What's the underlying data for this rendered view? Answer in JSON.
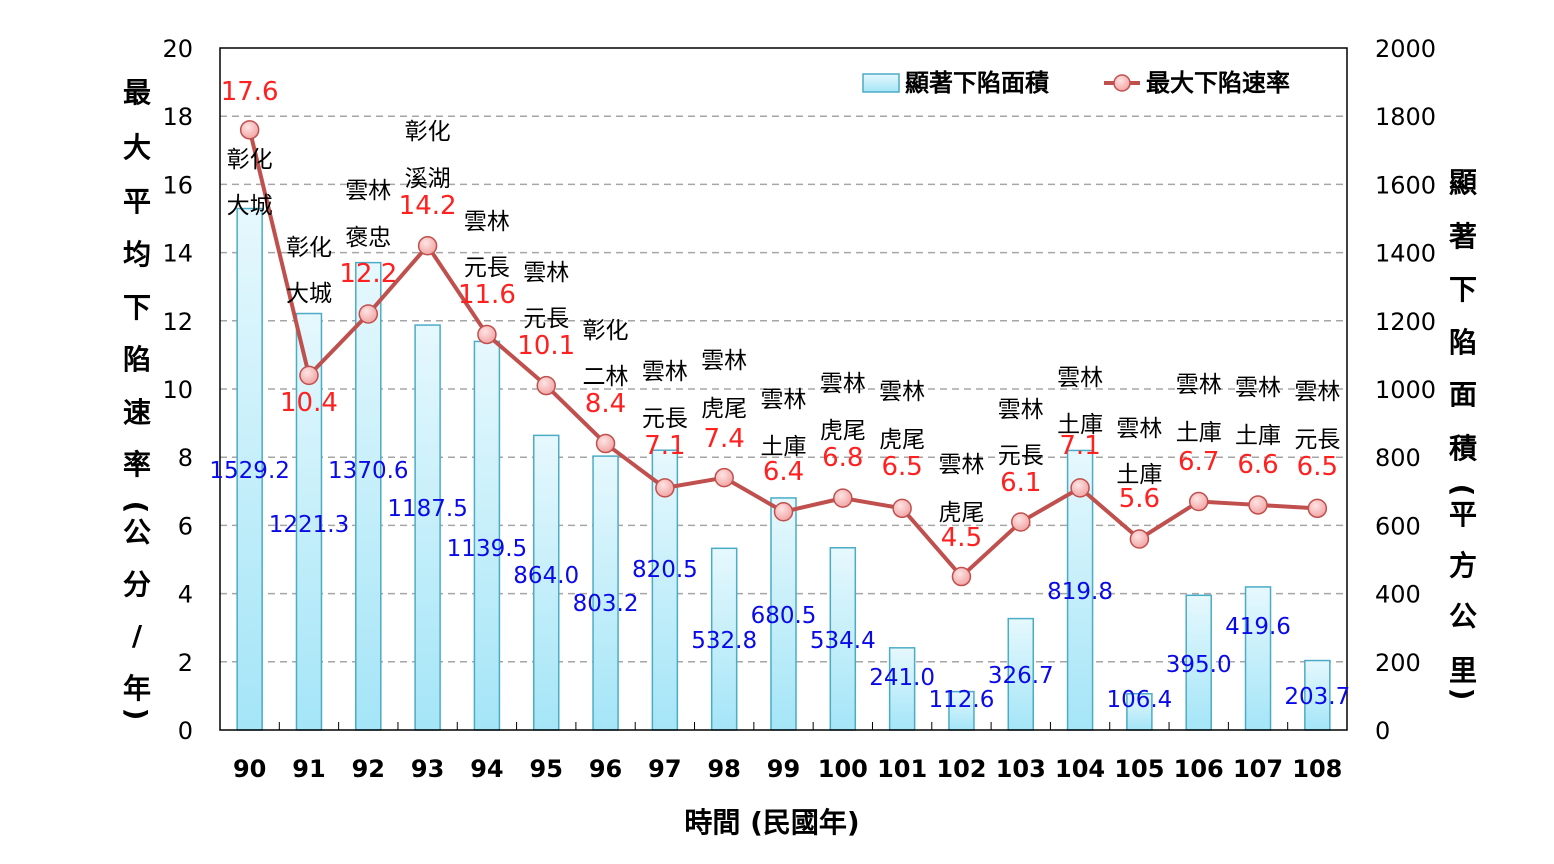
{
  "chart_data": {
    "type": "bar+line",
    "title": "",
    "xlabel": "時間 (民國年)",
    "ylabel_left": "最大平均下陷速率(公分/年)",
    "ylabel_right": "顯著下陷面積(平方公里)",
    "categories": [
      "90",
      "91",
      "92",
      "93",
      "94",
      "95",
      "96",
      "97",
      "98",
      "99",
      "100",
      "101",
      "102",
      "103",
      "104",
      "105",
      "106",
      "107",
      "108"
    ],
    "ylim_left": [
      0,
      20
    ],
    "yticks_left": [
      "0",
      "2",
      "4",
      "6",
      "8",
      "10",
      "12",
      "14",
      "16",
      "18",
      "20"
    ],
    "ylim_right": [
      0,
      2000
    ],
    "yticks_right": [
      "0",
      "200",
      "400",
      "600",
      "800",
      "1000",
      "1200",
      "1400",
      "1600",
      "1800",
      "2000"
    ],
    "grid": true,
    "legend_position": "top-right",
    "series": [
      {
        "name": "顯著下陷面積",
        "type": "bar",
        "axis": "right",
        "color": "#a9e6f7",
        "values": [
          1529.2,
          1221.3,
          1370.6,
          1187.5,
          1139.5,
          864.0,
          803.2,
          820.5,
          532.8,
          680.5,
          534.4,
          241.0,
          112.6,
          326.7,
          819.8,
          106.4,
          395.0,
          419.6,
          203.7
        ],
        "labels": [
          "1529.2",
          "1221.3",
          "1370.6",
          "1187.5",
          "1139.5",
          "864.0",
          "803.2",
          "820.5",
          "532.8",
          "680.5",
          "534.4",
          "241.0",
          "112.6",
          "326.7",
          "819.8",
          "106.4",
          "395.0",
          "419.6",
          "203.7"
        ]
      },
      {
        "name": "最大下陷速率",
        "type": "line",
        "axis": "left",
        "color": "#c0504d",
        "values": [
          17.6,
          10.4,
          12.2,
          14.2,
          11.6,
          10.1,
          8.4,
          7.1,
          7.4,
          6.4,
          6.8,
          6.5,
          4.5,
          6.1,
          7.1,
          5.6,
          6.7,
          6.6,
          6.5
        ],
        "labels": [
          "17.6",
          "10.4",
          "12.2",
          "14.2",
          "11.6",
          "10.1",
          "8.4",
          "7.1",
          "7.4",
          "6.4",
          "6.8",
          "6.5",
          "4.5",
          "6.1",
          "7.1",
          "5.6",
          "6.7",
          "6.6",
          "6.5"
        ]
      }
    ],
    "annotations": [
      {
        "category": "90",
        "county": "彰化",
        "town": "大城"
      },
      {
        "category": "91",
        "county": "彰化",
        "town": "大城"
      },
      {
        "category": "92",
        "county": "雲林",
        "town": "褒忠"
      },
      {
        "category": "93",
        "county": "彰化",
        "town": "溪湖"
      },
      {
        "category": "94",
        "county": "雲林",
        "town": "元長"
      },
      {
        "category": "95",
        "county": "雲林",
        "town": "元長"
      },
      {
        "category": "96",
        "county": "彰化",
        "town": "二林"
      },
      {
        "category": "97",
        "county": "雲林",
        "town": "元長"
      },
      {
        "category": "98",
        "county": "雲林",
        "town": "虎尾"
      },
      {
        "category": "99",
        "county": "雲林",
        "town": "土庫"
      },
      {
        "category": "100",
        "county": "雲林",
        "town": "虎尾"
      },
      {
        "category": "101",
        "county": "雲林",
        "town": "虎尾"
      },
      {
        "category": "102",
        "county": "雲林",
        "town": "虎尾"
      },
      {
        "category": "103",
        "county": "雲林",
        "town": "元長"
      },
      {
        "category": "104",
        "county": "雲林",
        "town": "土庫"
      },
      {
        "category": "105",
        "county": "雲林",
        "town": "土庫"
      },
      {
        "category": "106",
        "county": "雲林",
        "town": "土庫"
      },
      {
        "category": "107",
        "county": "雲林",
        "town": "土庫"
      },
      {
        "category": "108",
        "county": "雲林",
        "town": "元長"
      }
    ]
  }
}
